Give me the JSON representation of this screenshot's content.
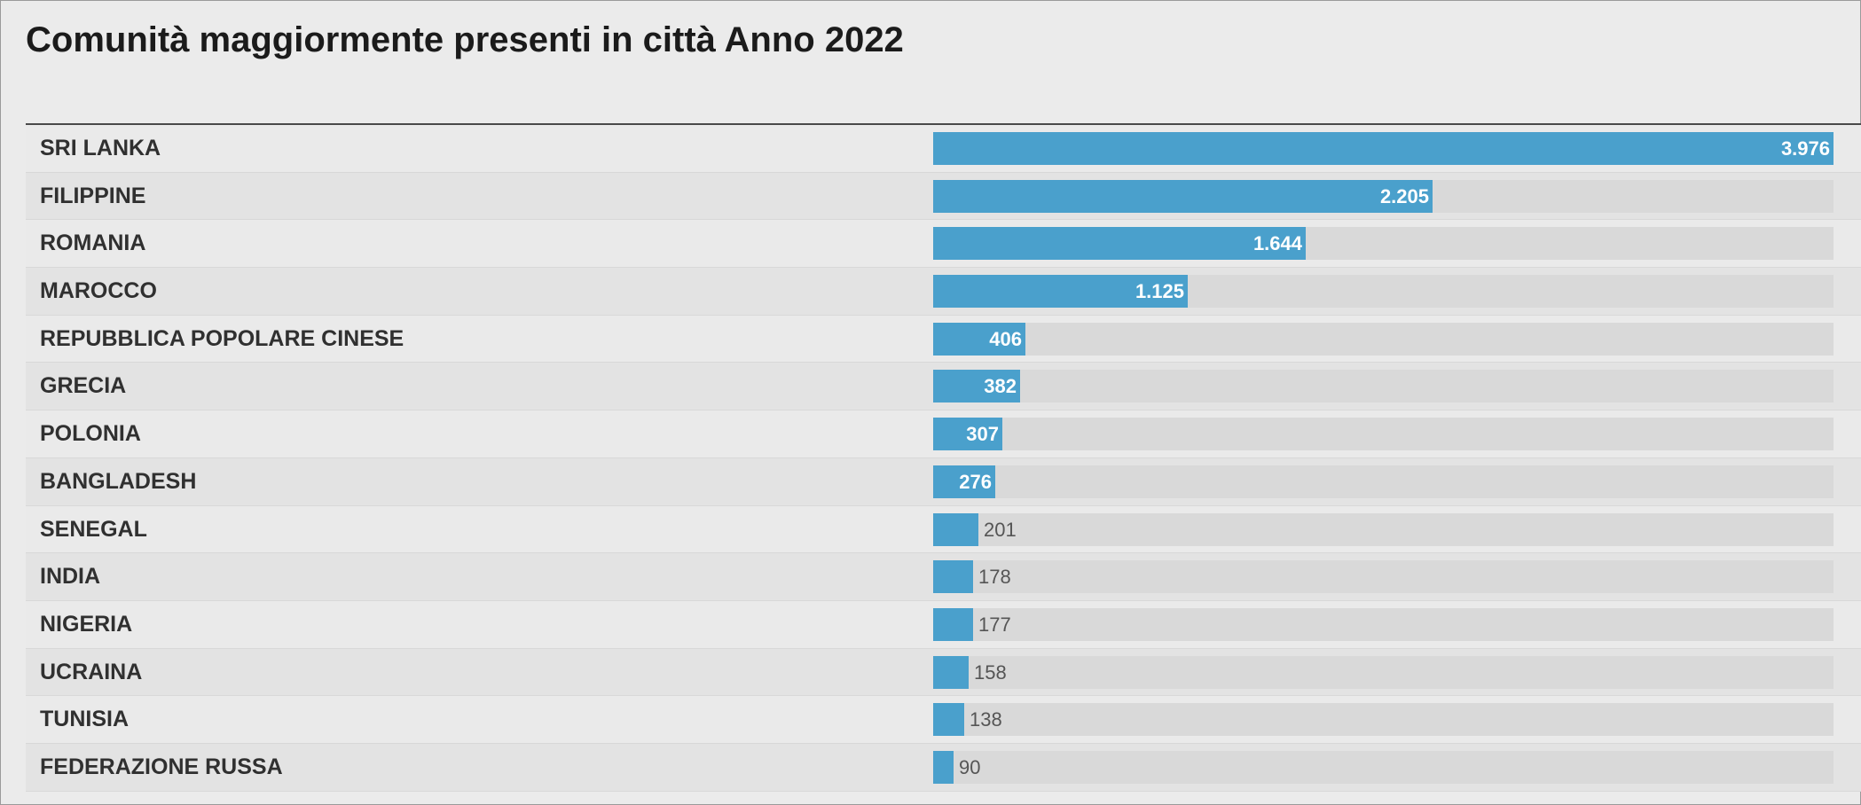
{
  "title": "Comunità maggiormente presenti in città Anno 2022",
  "colors": {
    "bar": "#4aa0cc",
    "track": "#d9d9d9",
    "background": "#ebebeb"
  },
  "chart_data": {
    "type": "bar",
    "orientation": "horizontal",
    "title": "Comunità maggiormente presenti in città Anno 2022",
    "categories": [
      "SRI LANKA",
      "FILIPPINE",
      "ROMANIA",
      "MAROCCO",
      "REPUBBLICA POPOLARE CINESE",
      "GRECIA",
      "POLONIA",
      "BANGLADESH",
      "SENEGAL",
      "INDIA",
      "NIGERIA",
      "UCRAINA",
      "TUNISIA",
      "FEDERAZIONE RUSSA"
    ],
    "values": [
      3976,
      2205,
      1644,
      1125,
      406,
      382,
      307,
      276,
      201,
      178,
      177,
      158,
      138,
      90
    ],
    "value_labels": [
      "3.976",
      "2.205",
      "1.644",
      "1.125",
      "406",
      "382",
      "307",
      "276",
      "201",
      "178",
      "177",
      "158",
      "138",
      "90"
    ],
    "xlim": [
      0,
      3976
    ],
    "grid": false,
    "legend": "none"
  }
}
